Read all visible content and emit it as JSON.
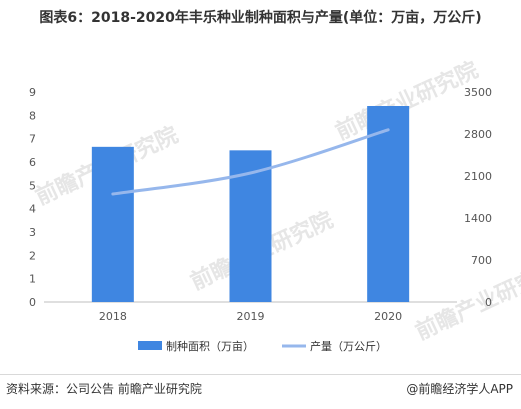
{
  "title": "图表6：2018-2020年丰乐种业制种面积与产量(单位：万亩，万公斤)",
  "chart_data": {
    "type": "bar+line",
    "categories": [
      "2018",
      "2019",
      "2020"
    ],
    "series": [
      {
        "name": "制种面积（万亩）",
        "type": "bar",
        "axis": "left",
        "color": "#3f86e1",
        "values": [
          6.65,
          6.5,
          8.4
        ]
      },
      {
        "name": "产量（万公斤）",
        "type": "line",
        "axis": "right",
        "color": "#96b7ec",
        "values": [
          1800,
          2150,
          2870
        ]
      }
    ],
    "y_left": {
      "ylim": [
        0,
        9
      ],
      "ticks": [
        "0",
        "1",
        "2",
        "3",
        "4",
        "5",
        "6",
        "7",
        "8",
        "9"
      ]
    },
    "y_right": {
      "ylim": [
        0,
        3500
      ],
      "ticks": [
        "0",
        "700",
        "1400",
        "2100",
        "2800",
        "3500"
      ]
    },
    "grid": false,
    "legend_position": "bottom"
  },
  "watermark": "前瞻产业研究院",
  "footer": {
    "source": "资料来源：公司公告 前瞻产业研究院",
    "brand": "@前瞻经济学人APP"
  }
}
